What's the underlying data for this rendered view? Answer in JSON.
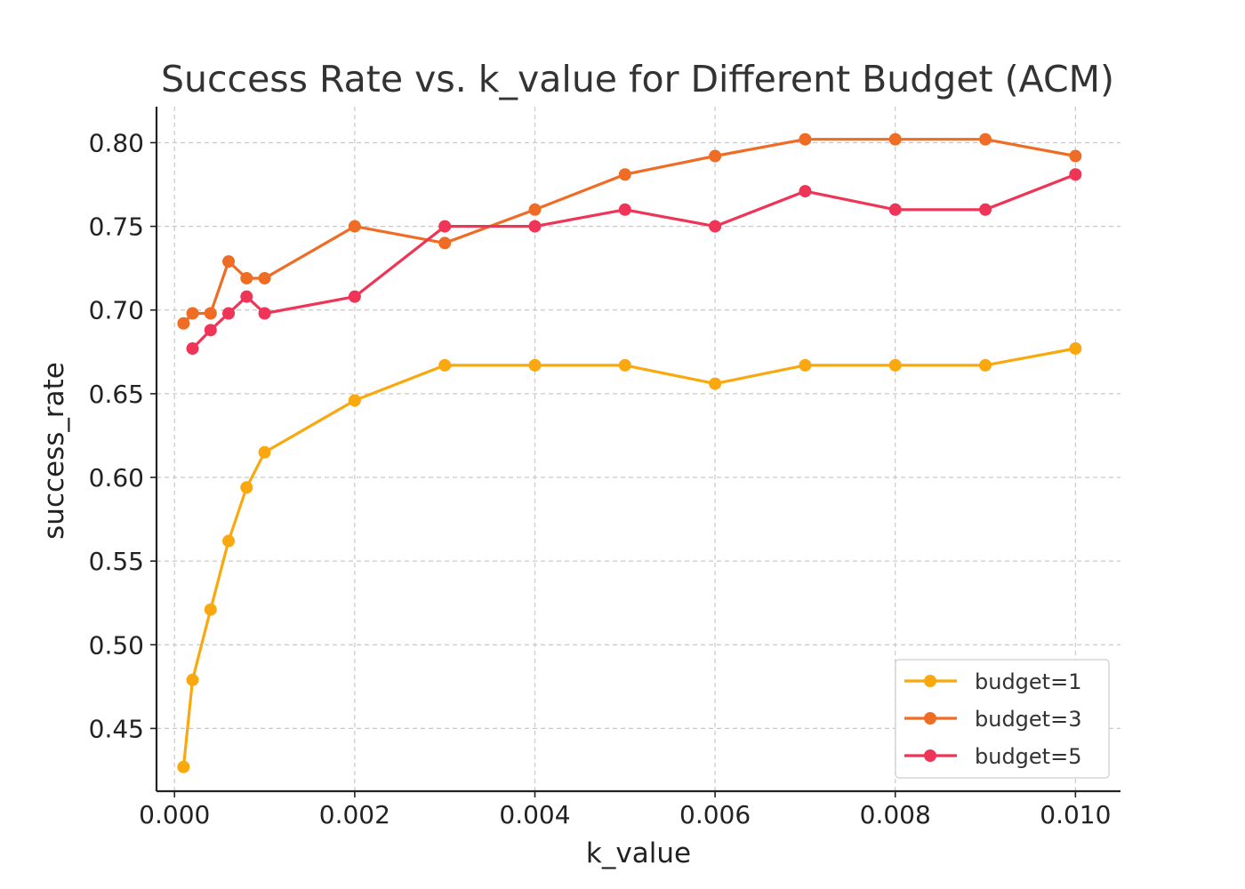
{
  "chart_data": {
    "type": "line",
    "title": "Success Rate vs. k_value for Different Budget (ACM)",
    "xlabel": "k_value",
    "ylabel": "success_rate",
    "xlim": [
      -0.0002,
      0.0105
    ],
    "ylim": [
      0.4125,
      0.8215
    ],
    "xticks": [
      0.0,
      0.002,
      0.004,
      0.006,
      0.008,
      0.01
    ],
    "xtick_labels": [
      "0.000",
      "0.002",
      "0.004",
      "0.006",
      "0.008",
      "0.010"
    ],
    "yticks": [
      0.45,
      0.5,
      0.55,
      0.6,
      0.65,
      0.7,
      0.75,
      0.8
    ],
    "ytick_labels": [
      "0.45",
      "0.50",
      "0.55",
      "0.60",
      "0.65",
      "0.70",
      "0.75",
      "0.80"
    ],
    "grid": true,
    "legend_position": "bottom-right",
    "series": [
      {
        "name": "budget=1",
        "color": "#F9A90F",
        "x": [
          0.0001,
          0.0002,
          0.0004,
          0.0006,
          0.0008,
          0.001,
          0.002,
          0.003,
          0.004,
          0.005,
          0.006,
          0.007,
          0.008,
          0.009,
          0.01
        ],
        "y": [
          0.427,
          0.479,
          0.521,
          0.562,
          0.594,
          0.615,
          0.646,
          0.667,
          0.667,
          0.667,
          0.656,
          0.667,
          0.667,
          0.667,
          0.677
        ]
      },
      {
        "name": "budget=3",
        "color": "#EF6C24",
        "x": [
          0.0001,
          0.0002,
          0.0004,
          0.0006,
          0.0008,
          0.001,
          0.002,
          0.003,
          0.004,
          0.005,
          0.006,
          0.007,
          0.008,
          0.009,
          0.01
        ],
        "y": [
          0.692,
          0.698,
          0.698,
          0.729,
          0.719,
          0.719,
          0.75,
          0.74,
          0.76,
          0.781,
          0.792,
          0.802,
          0.802,
          0.802,
          0.792
        ]
      },
      {
        "name": "budget=5",
        "color": "#EE3557",
        "x": [
          0.0002,
          0.0004,
          0.0006,
          0.0008,
          0.001,
          0.002,
          0.003,
          0.004,
          0.005,
          0.006,
          0.007,
          0.008,
          0.009,
          0.01
        ],
        "y": [
          0.677,
          0.688,
          0.698,
          0.708,
          0.698,
          0.708,
          0.75,
          0.75,
          0.76,
          0.75,
          0.771,
          0.76,
          0.76,
          0.781
        ]
      }
    ]
  }
}
